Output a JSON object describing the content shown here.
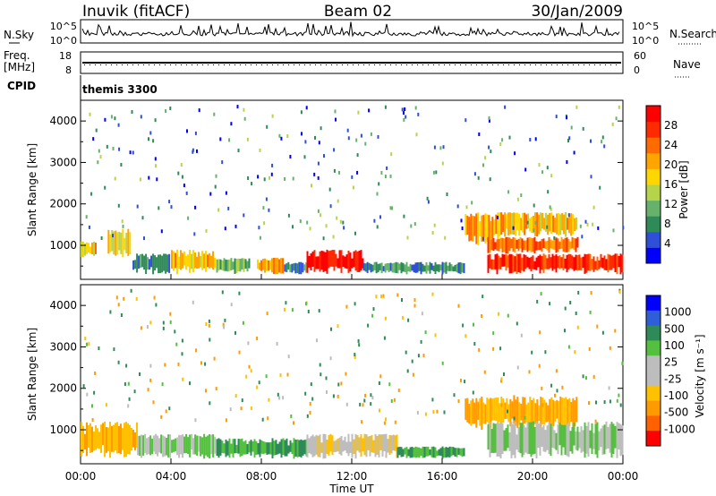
{
  "header": {
    "station": "Inuvik (fitACF)",
    "beam": "Beam 02",
    "date": "30/Jan/2009"
  },
  "noise_panel": {
    "left_label": "N.Sky",
    "left_ticks": [
      "10^5",
      "10^0"
    ],
    "right_label": "N.Search",
    "right_ticks": [
      "10^5",
      "10^0"
    ]
  },
  "freq_panel": {
    "left_label_1": "Freq.",
    "left_label_2": "[MHz]",
    "left_ticks": [
      "18",
      "8"
    ],
    "right_label": "Nave",
    "right_ticks": [
      "60",
      "0"
    ]
  },
  "cpid": {
    "label": "CPID",
    "value": "themis 3300"
  },
  "colors": {
    "power_scale": [
      "#0000ff",
      "#2f4fd8",
      "#2e8b57",
      "#66b26a",
      "#b5d44b",
      "#ffd700",
      "#ffa500",
      "#ff6b00",
      "#ff2a00",
      "#ff0000"
    ],
    "velocity_scale": [
      "#0000ff",
      "#2f5fd8",
      "#2e8b57",
      "#55c040",
      "#bdbdbd",
      "#bdbdbd",
      "#ffc000",
      "#ff9a00",
      "#ff6000",
      "#ff0000"
    ]
  },
  "chart_data": [
    {
      "type": "heatmap",
      "name": "power",
      "xlabel": "",
      "ylabel": "Slant Range [km]",
      "xlim": [
        0,
        24
      ],
      "ylim": [
        180,
        4500
      ],
      "yticks": [
        "1000",
        "2000",
        "3000",
        "4000"
      ],
      "yticks_values": [
        1000,
        2000,
        3000,
        4000
      ],
      "colorbar_label": "Power [dB]",
      "colorbar_ticks": [
        "4",
        "8",
        "12",
        "16",
        "20",
        "24",
        "28"
      ],
      "colorbar_range": [
        0,
        30
      ],
      "regions": [
        {
          "t": [
            0.0,
            0.7
          ],
          "r": [
            700,
            1100
          ],
          "v": 18
        },
        {
          "t": [
            1.2,
            2.2
          ],
          "r": [
            700,
            1400
          ],
          "v": 16
        },
        {
          "t": [
            2.3,
            4.0
          ],
          "r": [
            300,
            800
          ],
          "v": 8
        },
        {
          "t": [
            4.0,
            6.0
          ],
          "r": [
            300,
            900
          ],
          "v": 18
        },
        {
          "t": [
            6.0,
            7.5
          ],
          "r": [
            300,
            700
          ],
          "v": 10
        },
        {
          "t": [
            7.8,
            9.0
          ],
          "r": [
            300,
            700
          ],
          "v": 20
        },
        {
          "t": [
            9.0,
            10.0
          ],
          "r": [
            300,
            600
          ],
          "v": 8
        },
        {
          "t": [
            10.0,
            12.5
          ],
          "r": [
            300,
            900
          ],
          "v": 28
        },
        {
          "t": [
            12.5,
            14.0
          ],
          "r": [
            300,
            600
          ],
          "v": 8
        },
        {
          "t": [
            14.0,
            17.0
          ],
          "r": [
            300,
            600
          ],
          "v": 8
        },
        {
          "t": [
            17.0,
            18.5
          ],
          "r": [
            1000,
            1800
          ],
          "v": 20
        },
        {
          "t": [
            18.5,
            22.0
          ],
          "r": [
            1200,
            1800
          ],
          "v": 18
        },
        {
          "t": [
            18.0,
            24.0
          ],
          "r": [
            300,
            800
          ],
          "v": 26
        },
        {
          "t": [
            18.0,
            22.0
          ],
          "r": [
            800,
            1200
          ],
          "v": 22
        }
      ]
    },
    {
      "type": "heatmap",
      "name": "velocity",
      "xlabel": "Time UT",
      "ylabel": "Slant Range [km]",
      "xlim": [
        0,
        24
      ],
      "ylim": [
        180,
        4500
      ],
      "xticks": [
        "00:00",
        "04:00",
        "08:00",
        "12:00",
        "16:00",
        "20:00",
        "00:00"
      ],
      "xticks_values": [
        0,
        4,
        8,
        12,
        16,
        20,
        24
      ],
      "yticks": [
        "1000",
        "2000",
        "3000",
        "4000"
      ],
      "yticks_values": [
        1000,
        2000,
        3000,
        4000
      ],
      "colorbar_label": "Velocity [m s⁻¹]",
      "colorbar_ticks": [
        "1000",
        "500",
        "100",
        "25",
        "-25",
        "-100",
        "-500",
        "-1000"
      ],
      "regions": [
        {
          "t": [
            0.0,
            2.5
          ],
          "r": [
            300,
            1200
          ],
          "v": -100
        },
        {
          "t": [
            2.5,
            6.0
          ],
          "r": [
            300,
            900
          ],
          "v": 25
        },
        {
          "t": [
            6.0,
            10.0
          ],
          "r": [
            300,
            800
          ],
          "v": 100
        },
        {
          "t": [
            10.0,
            14.0
          ],
          "r": [
            300,
            900
          ],
          "v": -25
        },
        {
          "t": [
            14.0,
            17.0
          ],
          "r": [
            300,
            600
          ],
          "v": 100
        },
        {
          "t": [
            17.0,
            22.0
          ],
          "r": [
            1000,
            1800
          ],
          "v": -100
        },
        {
          "t": [
            18.0,
            24.0
          ],
          "r": [
            300,
            1200
          ],
          "v": 25
        }
      ]
    }
  ]
}
